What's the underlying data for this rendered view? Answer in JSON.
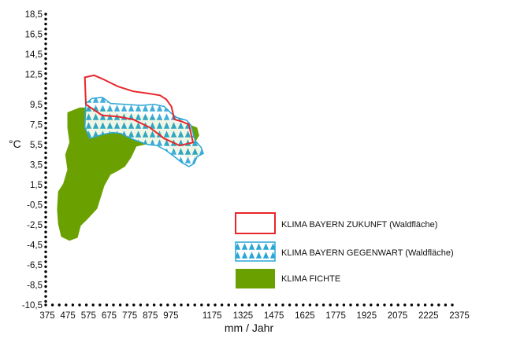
{
  "chart_data": {
    "type": "area",
    "xlabel": "mm / Jahr",
    "ylabel": "°C",
    "xlim": [
      375,
      2375
    ],
    "ylim": [
      -10.5,
      18.5
    ],
    "x_ticks": [
      "375",
      "475",
      "575",
      "675",
      "775",
      "875",
      "975",
      "1175",
      "1325",
      "1475",
      "1625",
      "1775",
      "1925",
      "2075",
      "2225",
      "2375"
    ],
    "y_ticks": [
      "18,5",
      "16,5",
      "14,5",
      "12,5",
      "9,5",
      "7,5",
      "5,5",
      "3,5",
      "1,5",
      "-0,5",
      "-2,5",
      "-4,5",
      "-6,5",
      "-8,5",
      "-10,5"
    ],
    "grid": false,
    "legend_position": "bottom-right",
    "series": [
      {
        "name": "KLIMA BAYERN ZUKUNFT (Waldfläche)",
        "style": "outline",
        "color": "#e8262b",
        "polygon": [
          [
            565,
            12.2
          ],
          [
            610,
            12.4
          ],
          [
            655,
            12.0
          ],
          [
            725,
            11.3
          ],
          [
            800,
            10.8
          ],
          [
            870,
            10.6
          ],
          [
            930,
            10.4
          ],
          [
            960,
            10.0
          ],
          [
            985,
            9.3
          ],
          [
            1000,
            8.0
          ],
          [
            1035,
            7.8
          ],
          [
            1070,
            7.5
          ],
          [
            1090,
            5.7
          ],
          [
            1025,
            5.4
          ],
          [
            950,
            6.1
          ],
          [
            880,
            7.2
          ],
          [
            800,
            8.0
          ],
          [
            720,
            8.3
          ],
          [
            650,
            8.4
          ],
          [
            570,
            9.5
          ]
        ]
      },
      {
        "name": "KLIMA BAYERN GEGENWART (Waldfläche)",
        "style": "hatched",
        "color": "#2ba6d6",
        "polygon": [
          [
            570,
            9.6
          ],
          [
            600,
            10.1
          ],
          [
            650,
            10.2
          ],
          [
            690,
            9.6
          ],
          [
            760,
            9.5
          ],
          [
            840,
            9.4
          ],
          [
            900,
            9.5
          ],
          [
            950,
            9.3
          ],
          [
            985,
            8.6
          ],
          [
            1010,
            8.2
          ],
          [
            1060,
            7.9
          ],
          [
            1080,
            7.4
          ],
          [
            1100,
            5.9
          ],
          [
            1130,
            5.2
          ],
          [
            1140,
            4.6
          ],
          [
            1110,
            4.3
          ],
          [
            1095,
            3.6
          ],
          [
            1070,
            3.3
          ],
          [
            1035,
            3.7
          ],
          [
            1005,
            4.2
          ],
          [
            960,
            4.9
          ],
          [
            915,
            5.4
          ],
          [
            870,
            5.5
          ],
          [
            800,
            6.0
          ],
          [
            740,
            6.6
          ],
          [
            700,
            6.7
          ],
          [
            650,
            6.5
          ],
          [
            590,
            6.1
          ],
          [
            565,
            7.2
          ]
        ]
      },
      {
        "name": "KLIMA FICHTE",
        "style": "filled",
        "color": "#6aa100",
        "polygon": [
          [
            480,
            8.7
          ],
          [
            540,
            9.2
          ],
          [
            625,
            9.2
          ],
          [
            700,
            8.8
          ],
          [
            800,
            8.6
          ],
          [
            900,
            8.2
          ],
          [
            980,
            7.9
          ],
          [
            1060,
            7.6
          ],
          [
            1110,
            7.2
          ],
          [
            1120,
            6.4
          ],
          [
            1100,
            5.7
          ],
          [
            1130,
            4.9
          ],
          [
            1110,
            4.3
          ],
          [
            1060,
            4.2
          ],
          [
            990,
            4.9
          ],
          [
            940,
            5.8
          ],
          [
            880,
            5.6
          ],
          [
            815,
            5.3
          ],
          [
            790,
            4.2
          ],
          [
            760,
            3.3
          ],
          [
            720,
            2.8
          ],
          [
            690,
            2.5
          ],
          [
            660,
            1.4
          ],
          [
            625,
            -0.9
          ],
          [
            575,
            -2.0
          ],
          [
            545,
            -2.6
          ],
          [
            530,
            -3.8
          ],
          [
            490,
            -4.1
          ],
          [
            450,
            -3.7
          ],
          [
            435,
            -2.4
          ],
          [
            430,
            -1.0
          ],
          [
            435,
            0.8
          ],
          [
            460,
            1.6
          ],
          [
            480,
            3.0
          ],
          [
            470,
            4.5
          ],
          [
            490,
            5.7
          ],
          [
            480,
            7.2
          ]
        ]
      }
    ]
  }
}
